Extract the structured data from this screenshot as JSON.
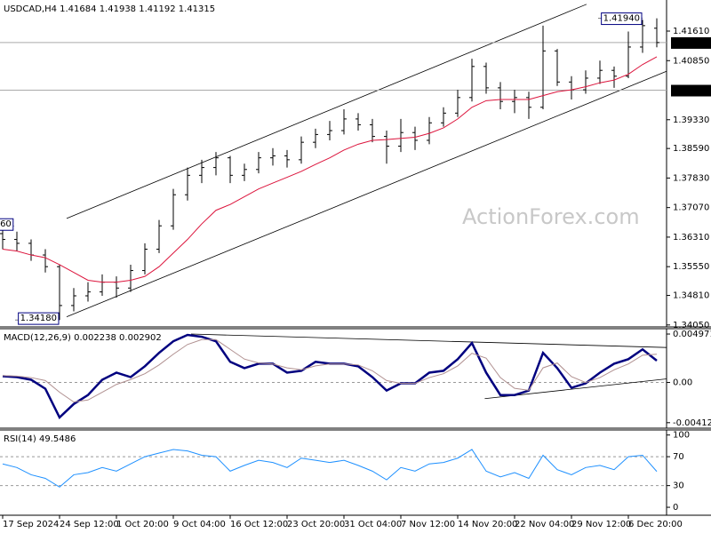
{
  "chart_data": [
    {
      "type": "ohlc",
      "title": "USDCAD,H4",
      "color": "#000000",
      "watermark": "ActionForex.com",
      "open": [
        1.364,
        1.3625,
        1.3615,
        1.3585,
        1.3555,
        1.3455,
        1.348,
        1.349,
        1.3515,
        1.35,
        1.3545,
        1.36,
        1.366,
        1.374,
        1.379,
        1.381,
        1.3835,
        1.379,
        1.3805,
        1.3835,
        1.384,
        1.383,
        1.3875,
        1.3895,
        1.3905,
        1.3935,
        1.392,
        1.389,
        1.3865,
        1.39,
        1.388,
        1.3925,
        1.395,
        1.399,
        1.407,
        1.4015,
        1.398,
        1.399,
        1.3965,
        1.411,
        1.403,
        1.401,
        1.404,
        1.406,
        1.4045,
        1.412,
        1.41684
      ],
      "high": [
        1.366,
        1.3645,
        1.3625,
        1.36,
        1.356,
        1.35,
        1.3515,
        1.3535,
        1.353,
        1.356,
        1.3615,
        1.3675,
        1.3755,
        1.381,
        1.383,
        1.385,
        1.384,
        1.382,
        1.385,
        1.386,
        1.3855,
        1.389,
        1.391,
        1.393,
        1.396,
        1.395,
        1.3935,
        1.3905,
        1.3935,
        1.3915,
        1.394,
        1.3965,
        1.401,
        1.409,
        1.408,
        1.403,
        1.401,
        1.4005,
        1.4175,
        1.4115,
        1.4045,
        1.406,
        1.4085,
        1.407,
        1.416,
        1.419,
        1.41938
      ],
      "low": [
        1.36,
        1.3595,
        1.357,
        1.354,
        1.3418,
        1.344,
        1.3465,
        1.348,
        1.3475,
        1.349,
        1.3535,
        1.359,
        1.365,
        1.3725,
        1.377,
        1.379,
        1.377,
        1.3775,
        1.3795,
        1.3815,
        1.381,
        1.382,
        1.386,
        1.388,
        1.3895,
        1.3905,
        1.3875,
        1.382,
        1.385,
        1.3855,
        1.387,
        1.3915,
        1.394,
        1.398,
        1.4,
        1.396,
        1.395,
        1.3935,
        1.396,
        1.402,
        1.3985,
        1.4,
        1.4025,
        1.4015,
        1.404,
        1.4105,
        1.41192
      ],
      "close": [
        1.3625,
        1.3615,
        1.3585,
        1.3555,
        1.3455,
        1.348,
        1.349,
        1.3515,
        1.35,
        1.3545,
        1.36,
        1.366,
        1.374,
        1.379,
        1.381,
        1.3835,
        1.379,
        1.3805,
        1.3835,
        1.384,
        1.383,
        1.3875,
        1.3895,
        1.3905,
        1.3935,
        1.392,
        1.389,
        1.3865,
        1.39,
        1.388,
        1.3925,
        1.395,
        1.399,
        1.407,
        1.4015,
        1.398,
        1.399,
        1.3965,
        1.411,
        1.403,
        1.401,
        1.404,
        1.406,
        1.4045,
        1.412,
        1.4175,
        1.41315
      ],
      "ma": {
        "color": "#dc143c",
        "values": [
          1.36,
          1.3595,
          1.3585,
          1.3578,
          1.356,
          1.354,
          1.352,
          1.3515,
          1.3515,
          1.352,
          1.353,
          1.3555,
          1.359,
          1.3625,
          1.3665,
          1.37,
          1.3715,
          1.3735,
          1.3755,
          1.377,
          1.3785,
          1.38,
          1.3818,
          1.3835,
          1.3855,
          1.387,
          1.388,
          1.3882,
          1.3885,
          1.3888,
          1.3898,
          1.3912,
          1.3935,
          1.3965,
          1.3982,
          1.3985,
          1.3985,
          1.3985,
          1.3995,
          1.4005,
          1.401,
          1.4018,
          1.4028,
          1.4035,
          1.405,
          1.4075,
          1.4095
        ]
      },
      "ylim": [
        1.34,
        1.4241
      ],
      "yticks": [
        {
          "value": 1.4161,
          "label": "1.41610"
        },
        {
          "value": 1.4085,
          "label": "1.40850"
        },
        {
          "value": 1.3933,
          "label": "1.39330"
        },
        {
          "value": 1.3859,
          "label": "1.38590"
        },
        {
          "value": 1.3783,
          "label": "1.37830"
        },
        {
          "value": 1.3707,
          "label": "1.37070"
        },
        {
          "value": 1.3631,
          "label": "1.36310"
        },
        {
          "value": 1.3555,
          "label": "1.35550"
        },
        {
          "value": 1.3481,
          "label": "1.34810"
        },
        {
          "value": 1.3405,
          "label": "1.34050"
        }
      ],
      "price_lines": [
        {
          "value": 1.41315,
          "label": "1.41315"
        },
        {
          "value": 1.4009,
          "label": "1.40090"
        }
      ],
      "annotations": [
        {
          "x": 45,
          "value": 1.4194,
          "label": "1.41940"
        },
        {
          "x": 4,
          "value": 1.3418,
          "label": "1.34180"
        },
        {
          "x": 0.8,
          "value": 1.366,
          "label": "60"
        }
      ],
      "trendlines": [
        {
          "x": [
            4.5,
            41.06
          ],
          "y": [
            1.3679,
            1.423
          ]
        },
        {
          "x": [
            4.5,
            46.7
          ],
          "y": [
            1.3426,
            1.4058
          ]
        }
      ]
    },
    {
      "type": "line",
      "title": "MACD(12,26,9)",
      "series": [
        {
          "color": "#00007f",
          "width": 2.5,
          "values": [
            0.00064,
            0.00055,
            0.00028,
            -0.00064,
            -0.00359,
            -0.00221,
            -0.00129,
            0.00028,
            0.00101,
            0.00055,
            0.00166,
            0.00304,
            0.00423,
            0.00488,
            0.00469,
            0.00423,
            0.00212,
            0.00147,
            0.00193,
            0.00193,
            0.00101,
            0.0012,
            0.00212,
            0.00193,
            0.00193,
            0.00166,
            0.00055,
            -0.00083,
            -9e-05,
            -9e-05,
            0.00101,
            0.0012,
            0.00239,
            0.00405,
            0.00101,
            -0.00129,
            -0.00129,
            -0.00083,
            0.00304,
            0.00147,
            -0.00055,
            -9e-05,
            0.00101,
            0.00193,
            0.00239,
            0.0034,
            0.002238
          ]
        },
        {
          "color": "#b09090",
          "width": 1,
          "values": [
            0.0007,
            0.00065,
            0.0005,
            0.0002,
            -0.001,
            -0.002,
            -0.0018,
            -0.001,
            -0.0002,
            0.0003,
            0.0009,
            0.0018,
            0.0029,
            0.0039,
            0.0044,
            0.0044,
            0.0034,
            0.0024,
            0.002,
            0.0019,
            0.0015,
            0.0013,
            0.0017,
            0.0019,
            0.0019,
            0.0018,
            0.0012,
            0.0002,
            -0.0001,
            -0.0001,
            0.0005,
            0.0009,
            0.0017,
            0.003,
            0.0025,
            0.0005,
            -0.0006,
            -0.0008,
            0.0015,
            0.002,
            0.0006,
            0.0,
            0.0005,
            0.0013,
            0.0019,
            0.0028,
            0.002902
          ]
        }
      ],
      "ylim": [
        -0.00469,
        0.00552
      ],
      "yticks": [
        0.004971,
        {
          "value": 0,
          "label": "0.00"
        },
        -0.004126
      ],
      "levels": [
        0
      ],
      "trendlines": [
        {
          "x": [
            13.25,
            46.7
          ],
          "y": [
            0.00497,
            0.00359
          ]
        },
        {
          "x": [
            33.9,
            46.7
          ],
          "y": [
            -0.00166,
            0.00037
          ]
        }
      ]
    },
    {
      "type": "line",
      "title": "RSI(14)",
      "series": [
        {
          "color": "#1e90ff",
          "width": 1,
          "values": [
            60,
            55,
            45,
            40,
            28,
            45,
            48,
            55,
            50,
            60,
            70,
            75,
            80,
            78,
            72,
            70,
            50,
            58,
            65,
            62,
            55,
            68,
            65,
            62,
            65,
            58,
            50,
            38,
            55,
            50,
            60,
            62,
            68,
            80,
            50,
            42,
            48,
            40,
            72,
            52,
            45,
            55,
            58,
            52,
            70,
            72,
            49.5486
          ]
        }
      ],
      "ylim": [
        -11,
        107
      ],
      "yticks": [
        100,
        70,
        30,
        0
      ],
      "levels": [
        70,
        30
      ],
      "categories": [
        "17 Sep 2024",
        null,
        null,
        null,
        "24 Sep 12:00",
        null,
        null,
        null,
        "1 Oct 20:00",
        null,
        null,
        null,
        "9 Oct 04:00",
        null,
        null,
        null,
        "16 Oct 12:00",
        null,
        null,
        null,
        "23 Oct 20:00",
        null,
        null,
        null,
        "31 Oct 04:00",
        null,
        null,
        null,
        "7 Nov 12:00",
        null,
        null,
        null,
        "14 Nov 20:00",
        null,
        null,
        null,
        "22 Nov 04:00",
        null,
        null,
        null,
        "29 Nov 12:00",
        null,
        null,
        null,
        "6 Dec 20:00",
        null,
        null
      ]
    }
  ]
}
